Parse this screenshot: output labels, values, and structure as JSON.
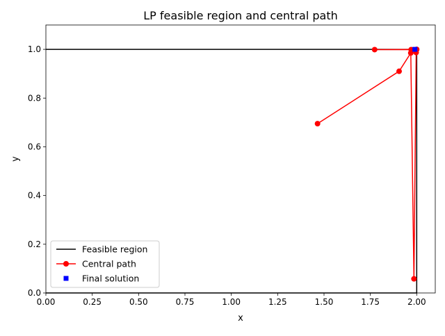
{
  "chart_data": {
    "type": "line",
    "title": "LP feasible region and central path",
    "xlabel": "x",
    "ylabel": "y",
    "xlim": [
      0.0,
      2.1
    ],
    "ylim": [
      0.0,
      1.1
    ],
    "xticks": [
      "0.00",
      "0.25",
      "0.50",
      "0.75",
      "1.00",
      "1.25",
      "1.50",
      "1.75",
      "2.00"
    ],
    "yticks": [
      "0.0",
      "0.2",
      "0.4",
      "0.6",
      "0.8",
      "1.0"
    ],
    "grid": false,
    "legend_position": "lower-left",
    "series": [
      {
        "name": "Feasible region",
        "color": "#000000",
        "marker": "none",
        "x": [
          0.0,
          2.0,
          2.0,
          0.0
        ],
        "y": [
          1.0,
          1.0,
          0.0,
          0.0
        ]
      },
      {
        "name": "Central path",
        "color": "#ff0000",
        "marker": "circle",
        "x": [
          1.465,
          1.905,
          1.968,
          1.985,
          1.997,
          1.998,
          1.997,
          1.97,
          1.773,
          2.0
        ],
        "y": [
          0.695,
          0.91,
          0.985,
          0.058,
          0.987,
          0.998,
          0.999,
          0.999,
          0.999,
          1.0
        ]
      },
      {
        "name": "Final solution",
        "color": "#0000ff",
        "marker": "square",
        "x": [
          1.99
        ],
        "y": [
          1.0
        ]
      }
    ]
  }
}
